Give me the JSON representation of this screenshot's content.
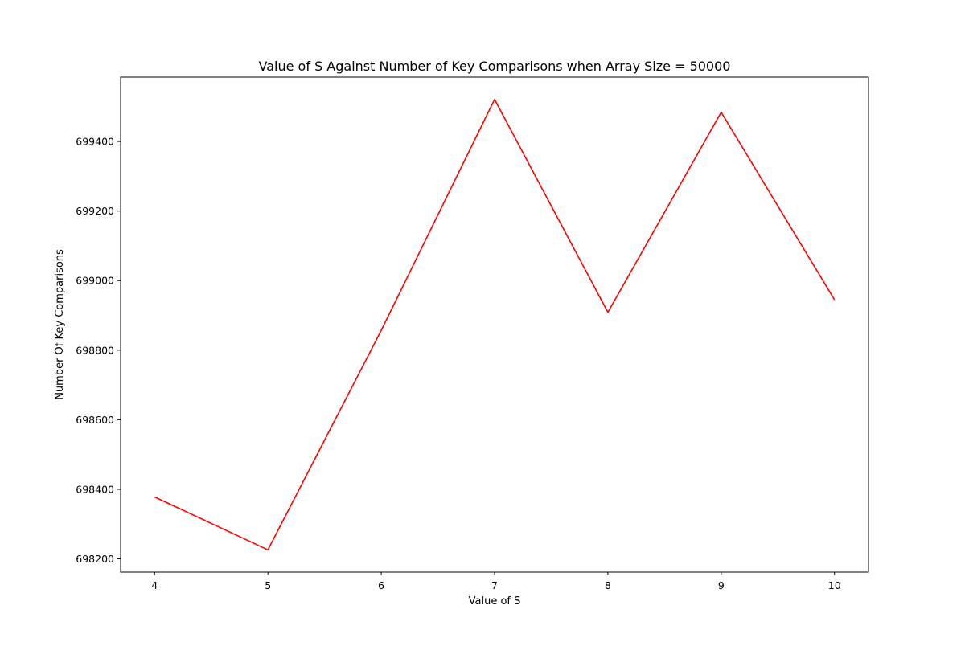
{
  "chart_data": {
    "type": "line",
    "title": "Value of S Against Number of Key Comparisons when Array Size = 50000",
    "xlabel": "Value of S",
    "ylabel": "Number Of Key Comparisons",
    "x": [
      4,
      5,
      6,
      7,
      8,
      9,
      10
    ],
    "series": [
      {
        "values": [
          698378,
          698226,
          698857,
          699521,
          698909,
          699484,
          698945
        ],
        "color": "#ff0000"
      }
    ],
    "xlim": [
      3.7,
      10.3
    ],
    "ylim": [
      698162,
      699585
    ],
    "xticks": [
      4,
      5,
      6,
      7,
      8,
      9,
      10
    ],
    "yticks": [
      698200,
      698400,
      698600,
      698800,
      699000,
      699200,
      699400
    ],
    "grid": false,
    "legend": "none"
  }
}
